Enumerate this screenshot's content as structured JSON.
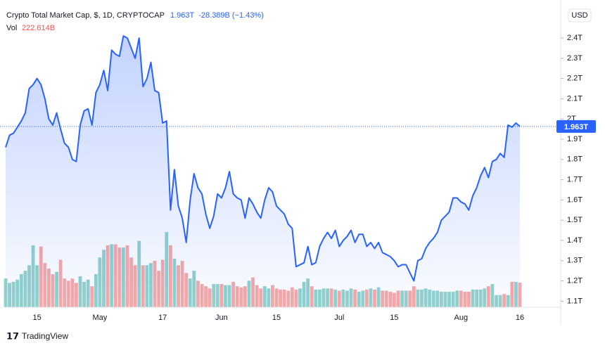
{
  "branding": "TradingView",
  "chart_data": {
    "type": "line",
    "title": "Crypto Total Market Cap, $, 1D, CRYPTOCAP",
    "last_price": "1.963T",
    "change": "-28.389B (−1.43%)",
    "currency": "USD",
    "color": "#2962ff",
    "categories": [
      null,
      null,
      null,
      null,
      null,
      null,
      null,
      null,
      "15",
      null,
      null,
      null,
      null,
      null,
      null,
      null,
      null,
      null,
      null,
      null,
      null,
      null,
      null,
      null,
      "May",
      null,
      null,
      null,
      null,
      null,
      null,
      null,
      null,
      null,
      null,
      null,
      null,
      null,
      null,
      null,
      "17",
      null,
      null,
      null,
      null,
      null,
      null,
      null,
      null,
      null,
      null,
      null,
      null,
      null,
      null,
      "Jun",
      null,
      null,
      null,
      null,
      null,
      null,
      null,
      null,
      null,
      null,
      null,
      null,
      null,
      "15",
      null,
      null,
      null,
      null,
      null,
      null,
      null,
      null,
      null,
      null,
      null,
      null,
      null,
      null,
      null,
      "Jul",
      null,
      null,
      null,
      null,
      null,
      null,
      null,
      null,
      null,
      null,
      null,
      null,
      null,
      "15",
      null,
      null,
      null,
      null,
      null,
      null,
      null,
      null,
      null,
      null,
      null,
      null,
      null,
      null,
      null,
      null,
      "Aug",
      null,
      null,
      null,
      null,
      null,
      null,
      null,
      null,
      null,
      null,
      null,
      null,
      null,
      null,
      "16"
    ],
    "values": [
      1.86,
      1.92,
      1.93,
      1.96,
      1.99,
      2.03,
      2.15,
      2.17,
      2.2,
      2.17,
      2.1,
      2.0,
      1.97,
      2.03,
      1.95,
      1.88,
      1.86,
      1.8,
      1.79,
      1.97,
      2.04,
      2.05,
      1.97,
      2.13,
      2.17,
      2.24,
      2.14,
      2.34,
      2.32,
      2.31,
      2.41,
      2.4,
      2.35,
      2.3,
      2.4,
      2.16,
      2.2,
      2.28,
      2.14,
      2.13,
      1.98,
      1.99,
      1.55,
      1.75,
      1.57,
      1.51,
      1.39,
      1.6,
      1.73,
      1.66,
      1.63,
      1.53,
      1.46,
      1.52,
      1.63,
      1.61,
      1.66,
      1.74,
      1.63,
      1.61,
      1.6,
      1.51,
      1.61,
      1.58,
      1.54,
      1.51,
      1.6,
      1.66,
      1.64,
      1.57,
      1.55,
      1.53,
      1.48,
      1.46,
      1.27,
      1.28,
      1.29,
      1.37,
      1.28,
      1.29,
      1.37,
      1.41,
      1.44,
      1.41,
      1.45,
      1.37,
      1.4,
      1.42,
      1.45,
      1.39,
      1.43,
      1.43,
      1.37,
      1.39,
      1.36,
      1.39,
      1.34,
      1.33,
      1.32,
      1.3,
      1.27,
      1.28,
      1.28,
      1.24,
      1.2,
      1.3,
      1.31,
      1.36,
      1.39,
      1.41,
      1.44,
      1.5,
      1.52,
      1.54,
      1.61,
      1.61,
      1.59,
      1.58,
      1.55,
      1.62,
      1.66,
      1.72,
      1.76,
      1.71,
      1.79,
      1.8,
      1.83,
      1.81,
      1.97,
      1.96,
      1.98,
      1.963
    ],
    "ylim": [
      1.07,
      2.56
    ],
    "yticks": [
      {
        "value": 1.1,
        "label": "1.1T"
      },
      {
        "value": 1.2,
        "label": "1.2T"
      },
      {
        "value": 1.3,
        "label": "1.3T"
      },
      {
        "value": 1.4,
        "label": "1.4T"
      },
      {
        "value": 1.5,
        "label": "1.5T"
      },
      {
        "value": 1.6,
        "label": "1.6T"
      },
      {
        "value": 1.7,
        "label": "1.7T"
      },
      {
        "value": 1.8,
        "label": "1.8T"
      },
      {
        "value": 1.9,
        "label": "1.9T"
      },
      {
        "value": 2,
        "label": "2T"
      },
      {
        "value": 2.1,
        "label": "2.1T"
      },
      {
        "value": 2.2,
        "label": "2.2T"
      },
      {
        "value": 2.3,
        "label": "2.3T"
      },
      {
        "value": 2.4,
        "label": "2.4T"
      }
    ],
    "volume": {
      "name": "Vol",
      "up_color": "#26a69a",
      "down_color": "#ef5350",
      "value_label": "222.614B",
      "values": [
        260,
        220,
        230,
        250,
        300,
        330,
        380,
        560,
        380,
        550,
        400,
        350,
        300,
        320,
        430,
        260,
        240,
        260,
        220,
        280,
        230,
        250,
        190,
        300,
        450,
        520,
        560,
        570,
        570,
        540,
        540,
        560,
        450,
        380,
        600,
        380,
        380,
        400,
        420,
        330,
        430,
        680,
        560,
        440,
        380,
        420,
        310,
        260,
        330,
        240,
        210,
        190,
        170,
        210,
        210,
        210,
        200,
        200,
        230,
        190,
        180,
        190,
        240,
        270,
        200,
        170,
        190,
        170,
        200,
        170,
        160,
        160,
        150,
        180,
        160,
        170,
        230,
        260,
        190,
        160,
        160,
        170,
        170,
        170,
        160,
        150,
        160,
        150,
        170,
        160,
        140,
        150,
        160,
        170,
        160,
        180,
        150,
        150,
        140,
        130,
        150,
        150,
        150,
        150,
        190,
        160,
        160,
        170,
        160,
        150,
        150,
        140,
        140,
        140,
        140,
        150,
        150,
        140,
        140,
        160,
        160,
        160,
        170,
        190,
        210,
        110,
        110,
        120,
        110,
        230,
        230,
        222.614
      ]
    },
    "y2lim": [
      0,
      2730
    ]
  }
}
